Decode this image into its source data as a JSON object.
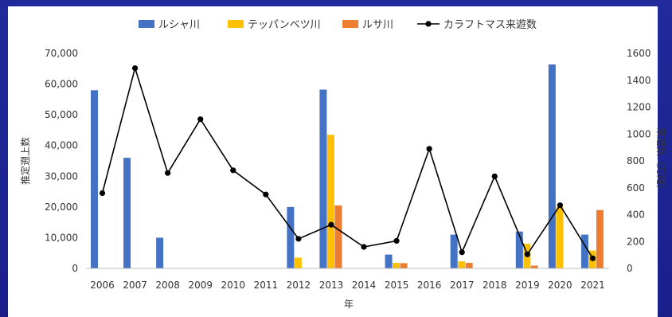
{
  "chart_data": {
    "type": "bar",
    "categories": [
      "2006",
      "2007",
      "2008",
      "2009",
      "2010",
      "2011",
      "2012",
      "2013",
      "2014",
      "2015",
      "2016",
      "2017",
      "2018",
      "2019",
      "2020",
      "2021"
    ],
    "series": [
      {
        "name": "ルシャ川",
        "type": "bar",
        "axis": "left",
        "color": "#4472c4",
        "values": [
          58000,
          36000,
          10000,
          0,
          0,
          0,
          20000,
          58200,
          0,
          4500,
          0,
          11000,
          0,
          12000,
          66400,
          11000
        ]
      },
      {
        "name": "テッパンベツ川",
        "type": "bar",
        "axis": "left",
        "color": "#ffc000",
        "values": [
          0,
          0,
          0,
          0,
          0,
          0,
          3500,
          43500,
          0,
          1800,
          0,
          2300,
          0,
          8000,
          20000,
          5800
        ]
      },
      {
        "name": "ルサ川",
        "type": "bar",
        "axis": "left",
        "color": "#ed7d31",
        "values": [
          0,
          0,
          0,
          0,
          0,
          0,
          0,
          20500,
          0,
          1700,
          0,
          1800,
          0,
          900,
          0,
          19000
        ]
      },
      {
        "name": "カラフトマス来遊数",
        "type": "line",
        "axis": "right",
        "color": "#000000",
        "values": [
          560,
          1490,
          710,
          1110,
          730,
          550,
          220,
          325,
          160,
          205,
          890,
          120,
          685,
          105,
          470,
          75
        ]
      }
    ],
    "xlabel": "年",
    "ylabel": "推定遡上数",
    "y2label": "来遊数（万尾）",
    "ylim": [
      0,
      70000
    ],
    "y2lim": [
      0,
      1600
    ],
    "yticks": [
      "0",
      "10,000",
      "20,000",
      "30,000",
      "40,000",
      "50,000",
      "60,000",
      "70,000"
    ],
    "y2ticks": [
      "0",
      "200",
      "400",
      "600",
      "800",
      "1000",
      "1200",
      "1400",
      "1600"
    ],
    "legend": "top",
    "grid": false
  }
}
